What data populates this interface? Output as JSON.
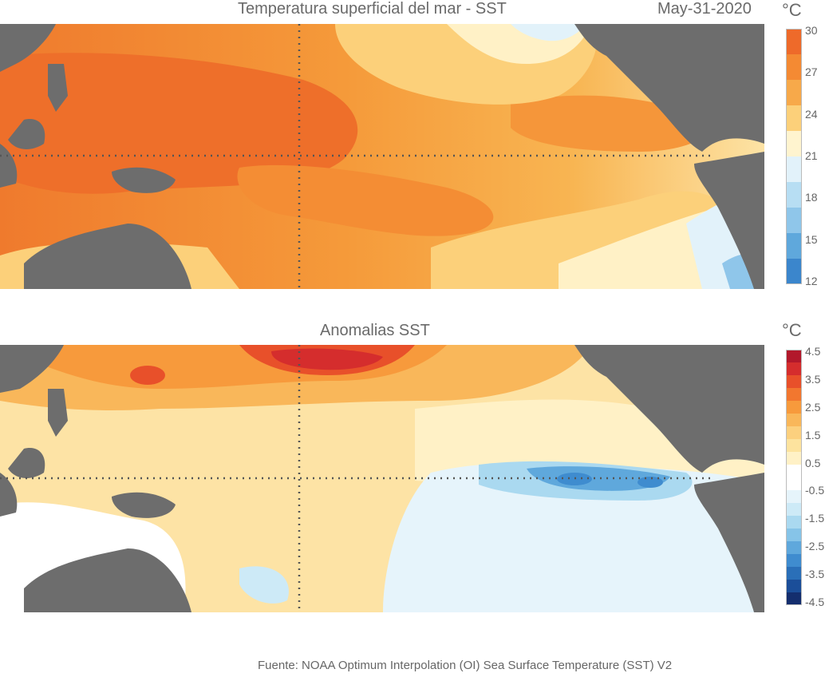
{
  "top_map": {
    "title": "Temperatura superficial del mar - SST",
    "date": "May-31-2020",
    "unit": "°C",
    "colorbar": {
      "ticks": [
        "30",
        "27",
        "24",
        "21",
        "18",
        "15",
        "12"
      ],
      "colors": [
        "#ee6a2a",
        "#f48a33",
        "#f7a94a",
        "#fcd07a",
        "#fff4cf",
        "#e2f2fa",
        "#b7def3",
        "#8fc6ea",
        "#5fa8dc",
        "#3b86cc"
      ]
    }
  },
  "bottom_map": {
    "title": "Anomalias SST",
    "unit": "°C",
    "colorbar": {
      "ticks": [
        "4.5",
        "3.5",
        "2.5",
        "1.5",
        "0.5",
        "-0.5",
        "-1.5",
        "-2.5",
        "-3.5",
        "-4.5"
      ],
      "colors": [
        "#b2182b",
        "#d52d2d",
        "#e8502a",
        "#f2772f",
        "#f79a3c",
        "#f9b75a",
        "#fcd07e",
        "#fde39e",
        "#fff1c6",
        "#ffffff",
        "#ffffff",
        "#e6f4fb",
        "#cdeaf7",
        "#aad9f0",
        "#86c4e8",
        "#5fa8dc",
        "#3f8ccf",
        "#2a6fb8",
        "#1b4e99",
        "#142e6e"
      ]
    }
  },
  "source": "Fuente: NOAA Optimum Interpolation (OI) Sea Surface Temperature (SST) V2",
  "colors": {
    "land": "#6d6d6d",
    "grid": "#555555"
  }
}
